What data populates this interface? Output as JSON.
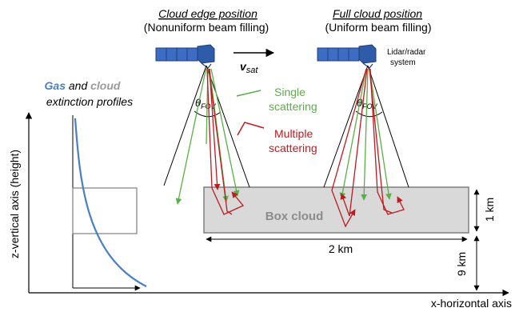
{
  "left_position": {
    "title": "Cloud edge position",
    "subtitle": "(Nonuniform beam filling)"
  },
  "right_position": {
    "title": "Full cloud position",
    "subtitle": "(Uniform beam filling)"
  },
  "velocity": {
    "symbol": "v",
    "subscript": "sat"
  },
  "fov": {
    "symbol": "θ",
    "subscript": "FOV"
  },
  "system_label": {
    "line1": "Lidar/radar",
    "line2": "system"
  },
  "legend": {
    "single": {
      "line1": "Single",
      "line2": "scattering",
      "color": "#5aaf45"
    },
    "multiple": {
      "line1": "Multiple",
      "line2": "scattering",
      "color": "#c0191f"
    }
  },
  "extinction": {
    "gas_word": "Gas",
    "and_word": "and",
    "cloud_word": "cloud",
    "line2": "extinction profiles",
    "gas_color": "#4a7fc1",
    "cloud_color": "#9a9a9a"
  },
  "box_cloud": {
    "label": "Box cloud",
    "width_label": "2 km",
    "height_label": "1 km",
    "altitude_label": "9 km"
  },
  "axes": {
    "z_label": "z-vertical axis (height)",
    "x_label": "x-horizontal axis"
  },
  "colors": {
    "satellite_panel": "#3d6cc4",
    "satellite_body": "#2f5ca8",
    "box_fill": "#d9d9d9",
    "box_stroke": "#7f7f7f",
    "box_text": "#8c8c8c"
  }
}
